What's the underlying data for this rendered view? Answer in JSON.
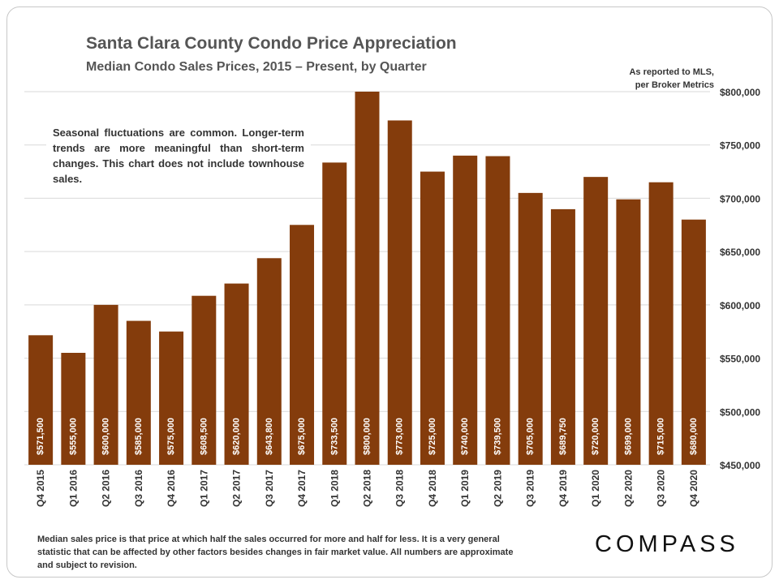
{
  "header": {
    "title": "Santa Clara County Condo Price Appreciation",
    "subtitle": "Median Condo Sales Prices, 2015 – Present, by Quarter",
    "source_line1": "As reported to MLS,",
    "source_line2": "per Broker Metrics"
  },
  "note": "Seasonal fluctuations are common. Longer-term trends are more meaningful than short-term changes. This chart does not include townhouse sales.",
  "footnote": "Median sales price is that price at which half the sales occurred for more and half for less. It is a very general statistic that can be affected by other factors besides changes in fair market value. All numbers are approximate and subject to revision.",
  "logo": "COMPASS",
  "colors": {
    "bar": "#843c0c",
    "gridline": "#d9d9d9",
    "axis_text": "#333333",
    "bar_label": "#ffffff"
  },
  "chart_data": {
    "type": "bar",
    "categories": [
      "Q4 2015",
      "Q1 2016",
      "Q2 2016",
      "Q3 2016",
      "Q4 2016",
      "Q1 2017",
      "Q2 2017",
      "Q3 2017",
      "Q4 2017",
      "Q1 2018",
      "Q2 2018",
      "Q3 2018",
      "Q4 2018",
      "Q1 2019",
      "Q2 2019",
      "Q3 2019",
      "Q4 2019",
      "Q1 2020",
      "Q2 2020",
      "Q3 2020",
      "Q4 2020"
    ],
    "values": [
      571500,
      555000,
      600000,
      585000,
      575000,
      608500,
      620000,
      643800,
      675000,
      733500,
      800000,
      773000,
      725000,
      740000,
      739500,
      705000,
      689750,
      720000,
      699000,
      715000,
      680000
    ],
    "data_labels": [
      "$571,500",
      "$555,000",
      "$600,000",
      "$585,000",
      "$575,000",
      "$608,500",
      "$620,000",
      "$643,800",
      "$675,000",
      "$733,500",
      "$800,000",
      "$773,000",
      "$725,000",
      "$740,000",
      "$739,500",
      "$705,000",
      "$689,750",
      "$720,000",
      "$699,000",
      "$715,000",
      "$680,000"
    ],
    "ylim": [
      450000,
      800000
    ],
    "yticks": [
      450000,
      500000,
      550000,
      600000,
      650000,
      700000,
      750000,
      800000
    ],
    "ytick_labels": [
      "$450,000",
      "$500,000",
      "$550,000",
      "$600,000",
      "$650,000",
      "$700,000",
      "$750,000",
      "$800,000"
    ],
    "y_axis_side": "right",
    "grid": true,
    "legend": "none"
  }
}
